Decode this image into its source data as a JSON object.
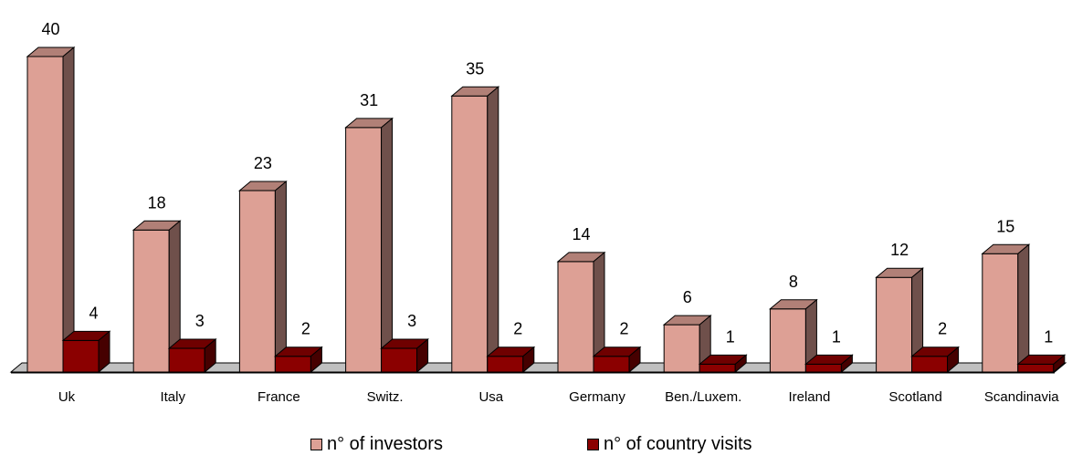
{
  "chart_data": {
    "type": "bar",
    "categories": [
      "Uk",
      "Italy",
      "France",
      "Switz.",
      "Usa",
      "Germany",
      "Ben./Luxem.",
      "Ireland",
      "Scotland",
      "Scandinavia"
    ],
    "series": [
      {
        "name": "n° of investors",
        "values": [
          40,
          18,
          23,
          31,
          35,
          14,
          6,
          8,
          12,
          15
        ],
        "color": "#DDA095"
      },
      {
        "name": "n° of country visits",
        "values": [
          4,
          3,
          2,
          3,
          2,
          2,
          1,
          1,
          2,
          1
        ],
        "color": "#8B0000"
      }
    ],
    "ylim": [
      0,
      40
    ],
    "grid": false,
    "legend_position": "bottom",
    "style": "3d-column"
  }
}
